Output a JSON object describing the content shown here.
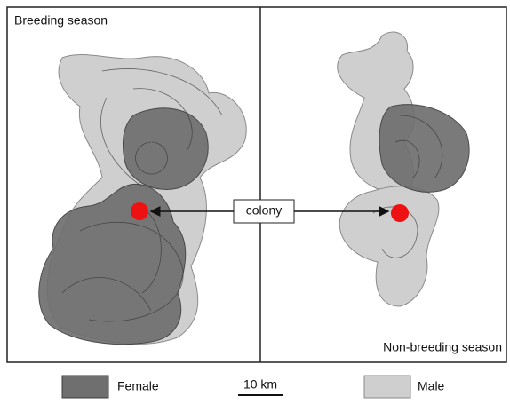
{
  "panels": [
    {
      "label": "Breeding season"
    },
    {
      "label": "Non-breeding season"
    }
  ],
  "colony_label": "colony",
  "legend": {
    "items": [
      {
        "label": "Female"
      },
      {
        "label": "Male"
      }
    ],
    "scale": "10 km"
  }
}
